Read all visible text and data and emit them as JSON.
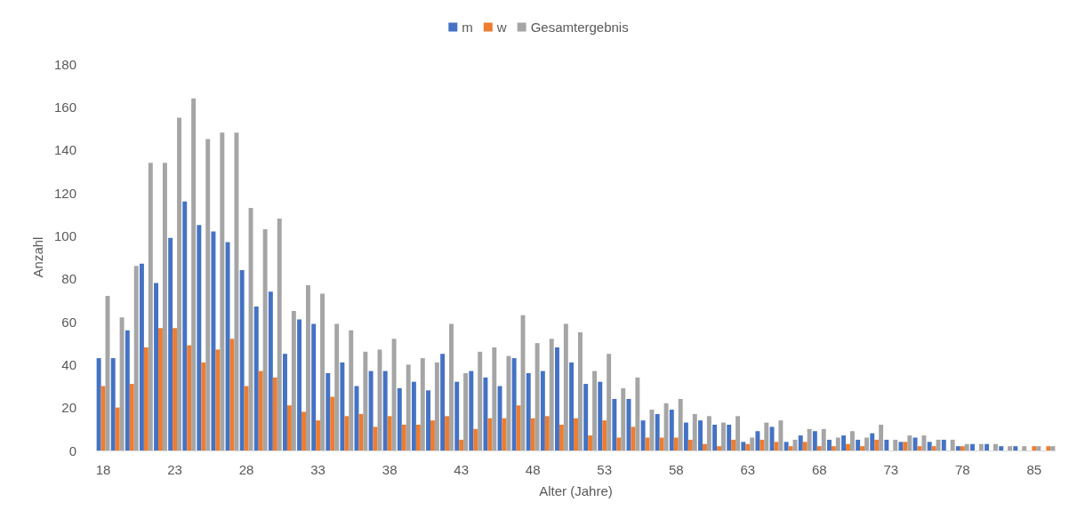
{
  "chart_data": {
    "type": "bar",
    "xlabel": "Alter (Jahre)",
    "ylabel": "Anzahl",
    "categories": [
      "18",
      null,
      null,
      null,
      null,
      "23",
      null,
      null,
      null,
      null,
      "28",
      null,
      null,
      null,
      null,
      "33",
      null,
      null,
      null,
      null,
      "38",
      null,
      null,
      null,
      null,
      "43",
      null,
      null,
      null,
      null,
      "48",
      null,
      null,
      null,
      null,
      "53",
      null,
      null,
      null,
      null,
      "58",
      null,
      null,
      null,
      null,
      "63",
      null,
      null,
      null,
      null,
      "68",
      null,
      null,
      null,
      null,
      "73",
      null,
      null,
      null,
      null,
      "78",
      null,
      null,
      null,
      null,
      "85",
      null
    ],
    "series": [
      {
        "name": "m",
        "color": "#4472c4",
        "values": [
          43,
          43,
          56,
          87,
          78,
          99,
          116,
          105,
          102,
          97,
          84,
          67,
          74,
          45,
          61,
          59,
          36,
          41,
          30,
          37,
          37,
          29,
          32,
          28,
          45,
          32,
          37,
          34,
          30,
          43,
          36,
          37,
          48,
          41,
          31,
          32,
          24,
          24,
          14,
          17,
          19,
          13,
          14,
          12,
          12,
          4,
          9,
          11,
          4,
          7,
          9,
          5,
          7,
          5,
          8,
          5,
          4,
          6,
          4,
          5,
          2,
          3,
          3,
          2,
          2,
          null,
          null
        ]
      },
      {
        "name": "w",
        "color": "#ed7d31",
        "values": [
          30,
          20,
          31,
          48,
          57,
          57,
          49,
          41,
          47,
          52,
          30,
          37,
          34,
          21,
          18,
          14,
          25,
          16,
          17,
          11,
          16,
          12,
          12,
          14,
          16,
          5,
          10,
          15,
          15,
          21,
          15,
          16,
          12,
          15,
          7,
          14,
          6,
          11,
          6,
          6,
          6,
          5,
          3,
          2,
          5,
          3,
          5,
          4,
          2,
          4,
          2,
          2,
          3,
          2,
          5,
          null,
          4,
          2,
          2,
          null,
          2,
          null,
          null,
          null,
          null,
          2,
          2
        ]
      },
      {
        "name": "Gesamtergebnis",
        "color": "#a5a5a5",
        "values": [
          72,
          62,
          86,
          134,
          134,
          155,
          164,
          145,
          148,
          148,
          113,
          103,
          108,
          65,
          77,
          73,
          59,
          56,
          46,
          47,
          52,
          40,
          43,
          41,
          59,
          36,
          46,
          48,
          44,
          63,
          50,
          52,
          59,
          55,
          37,
          45,
          29,
          34,
          19,
          22,
          24,
          17,
          16,
          13,
          16,
          6,
          13,
          14,
          5,
          10,
          10,
          6,
          9,
          6,
          12,
          5,
          7,
          7,
          5,
          5,
          3,
          3,
          3,
          2,
          2,
          2,
          2
        ]
      }
    ],
    "ylim": [
      0,
      180
    ],
    "yticks": [
      0,
      20,
      40,
      60,
      80,
      100,
      120,
      140,
      160,
      180
    ],
    "grid": false,
    "legend": "top"
  }
}
